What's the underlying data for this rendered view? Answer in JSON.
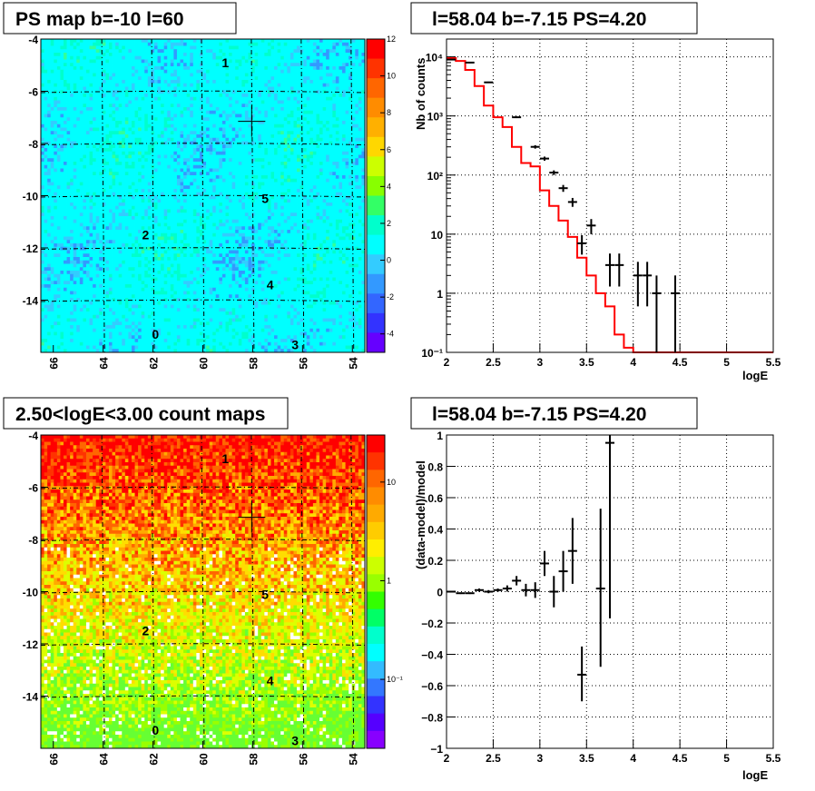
{
  "chart_data": [
    {
      "type": "heatmap",
      "title": "PS map b=-10 l=60",
      "xlim": [
        66.5,
        53.5
      ],
      "ylim": [
        -16,
        -4
      ],
      "x_ticks": [
        66,
        64,
        62,
        60,
        58,
        56,
        54
      ],
      "y_ticks": [
        -4,
        -6,
        -8,
        -10,
        -12,
        -14
      ],
      "color_scale": {
        "min": -5,
        "max": 12,
        "ticks": [
          12,
          10,
          8,
          6,
          4,
          2,
          0,
          -2,
          -4
        ]
      },
      "grid": "dashed",
      "marker": {
        "l": 58.04,
        "b": -7.15
      },
      "sources": [
        {
          "label": "1",
          "l": 59.1,
          "b": -4.9
        },
        {
          "label": "5",
          "l": 57.5,
          "b": -10.1
        },
        {
          "label": "2",
          "l": 62.3,
          "b": -11.5
        },
        {
          "label": "4",
          "l": 57.3,
          "b": -13.4
        },
        {
          "label": "0",
          "l": 61.9,
          "b": -15.3
        },
        {
          "label": "3",
          "l": 56.3,
          "b": -15.7
        }
      ]
    },
    {
      "type": "line",
      "title": "l=58.04 b=-7.15 PS=4.20",
      "xlabel": "logE",
      "ylabel": "Nb of counts",
      "xlim": [
        2,
        5.5
      ],
      "ylim": [
        0.1,
        20000
      ],
      "yscale": "log",
      "x_ticks": [
        "2",
        "2.5",
        "3",
        "3.5",
        "4",
        "4.5",
        "5",
        "5.5"
      ],
      "y_ticks": [
        "10⁻¹",
        "1",
        "10",
        "10²",
        "10³",
        "10⁴"
      ],
      "grid": true,
      "series": [
        {
          "kind": "model_histogram",
          "color": "#ff0000",
          "bin_edges": [
            2.0,
            2.1,
            2.2,
            2.3,
            2.4,
            2.5,
            2.6,
            2.7,
            2.8,
            2.9,
            3.0,
            3.1,
            3.2,
            3.3,
            3.4,
            3.5,
            3.6,
            3.7,
            3.8,
            3.9,
            4.0,
            4.1,
            4.2,
            4.3,
            4.4,
            4.5,
            4.6,
            4.7,
            4.8,
            4.9,
            5.0,
            5.1,
            5.2,
            5.3,
            5.4,
            5.5
          ],
          "values": [
            9500,
            8500,
            6000,
            3200,
            1500,
            950,
            650,
            300,
            160,
            140,
            55,
            30,
            17,
            9,
            4,
            2,
            1,
            0.6,
            0.2,
            0.12,
            0.1,
            0.1,
            0.1,
            0.1,
            0.1,
            0.1,
            0.1,
            0.1,
            0.1,
            0.1,
            0.1,
            0.1,
            0.1,
            0.1,
            0.1
          ]
        },
        {
          "kind": "data_points",
          "color": "#000000",
          "points": [
            {
              "x": 2.05,
              "y": 9000,
              "lo": 8800,
              "hi": 9200
            },
            {
              "x": 2.25,
              "y": 8000,
              "lo": 7800,
              "hi": 8200
            },
            {
              "x": 2.45,
              "y": 3700,
              "lo": 3600,
              "hi": 3800
            },
            {
              "x": 2.75,
              "y": 950,
              "lo": 920,
              "hi": 980
            },
            {
              "x": 2.95,
              "y": 300,
              "lo": 280,
              "hi": 320
            },
            {
              "x": 3.05,
              "y": 190,
              "lo": 175,
              "hi": 205
            },
            {
              "x": 3.15,
              "y": 110,
              "lo": 100,
              "hi": 120
            },
            {
              "x": 3.25,
              "y": 60,
              "lo": 52,
              "hi": 68
            },
            {
              "x": 3.35,
              "y": 35,
              "lo": 29,
              "hi": 41
            },
            {
              "x": 3.45,
              "y": 7,
              "lo": 4.5,
              "hi": 9.6
            },
            {
              "x": 3.55,
              "y": 14,
              "lo": 10,
              "hi": 18
            },
            {
              "x": 3.75,
              "y": 3,
              "lo": 1.3,
              "hi": 4.7
            },
            {
              "x": 3.85,
              "y": 3,
              "lo": 1.3,
              "hi": 4.7
            },
            {
              "x": 4.05,
              "y": 2,
              "lo": 0.6,
              "hi": 3.4
            },
            {
              "x": 4.15,
              "y": 2,
              "lo": 0.6,
              "hi": 3.4
            },
            {
              "x": 4.25,
              "y": 1,
              "lo": 0.1,
              "hi": 2.0
            },
            {
              "x": 4.45,
              "y": 1,
              "lo": 0.1,
              "hi": 2.0
            }
          ]
        }
      ]
    },
    {
      "type": "heatmap",
      "title": "2.50<logE<3.00 count maps",
      "xlim": [
        66.5,
        53.5
      ],
      "ylim": [
        -16,
        -4
      ],
      "x_ticks": [
        66,
        64,
        62,
        60,
        58,
        56,
        54
      ],
      "y_ticks": [
        -4,
        -6,
        -8,
        -10,
        -12,
        -14
      ],
      "color_scale": {
        "scale": "log",
        "min": 0.02,
        "max": 30,
        "ticks": [
          "10",
          "1",
          "10⁻¹"
        ]
      },
      "grid": "dashed",
      "marker": {
        "l": 58.04,
        "b": -7.15
      },
      "sources": [
        {
          "label": "1",
          "l": 59.1,
          "b": -4.9
        },
        {
          "label": "5",
          "l": 57.5,
          "b": -10.1
        },
        {
          "label": "2",
          "l": 62.3,
          "b": -11.5
        },
        {
          "label": "4",
          "l": 57.3,
          "b": -13.4
        },
        {
          "label": "0",
          "l": 61.9,
          "b": -15.3
        },
        {
          "label": "3",
          "l": 56.3,
          "b": -15.7
        }
      ]
    },
    {
      "type": "scatter",
      "title": "l=58.04 b=-7.15 PS=4.20",
      "xlabel": "logE",
      "ylabel": "(data-model)/model",
      "xlim": [
        2,
        5.5
      ],
      "ylim": [
        -1,
        1
      ],
      "x_ticks": [
        "2",
        "2.5",
        "3",
        "3.5",
        "4",
        "4.5",
        "5",
        "5.5"
      ],
      "y_ticks": [
        "1",
        "0.8",
        "0.6",
        "0.4",
        "0.2",
        "0",
        "−0.2",
        "−0.4",
        "−0.6",
        "−0.8",
        "−1"
      ],
      "grid": true,
      "points": [
        {
          "x": 2.05,
          "y": 0.0,
          "lo": -0.005,
          "hi": 0.005
        },
        {
          "x": 2.15,
          "y": -0.01,
          "lo": -0.015,
          "hi": -0.005
        },
        {
          "x": 2.25,
          "y": -0.01,
          "lo": -0.015,
          "hi": -0.005
        },
        {
          "x": 2.35,
          "y": 0.01,
          "lo": 0.0,
          "hi": 0.02
        },
        {
          "x": 2.45,
          "y": 0.0,
          "lo": -0.01,
          "hi": 0.01
        },
        {
          "x": 2.55,
          "y": 0.01,
          "lo": 0.0,
          "hi": 0.02
        },
        {
          "x": 2.65,
          "y": 0.02,
          "lo": 0.0,
          "hi": 0.04
        },
        {
          "x": 2.75,
          "y": 0.07,
          "lo": 0.04,
          "hi": 0.1
        },
        {
          "x": 2.85,
          "y": 0.01,
          "lo": -0.03,
          "hi": 0.05
        },
        {
          "x": 2.95,
          "y": 0.01,
          "lo": -0.04,
          "hi": 0.06
        },
        {
          "x": 3.05,
          "y": 0.18,
          "lo": 0.1,
          "hi": 0.26
        },
        {
          "x": 3.15,
          "y": 0.0,
          "lo": -0.1,
          "hi": 0.1
        },
        {
          "x": 3.25,
          "y": 0.13,
          "lo": 0.0,
          "hi": 0.26
        },
        {
          "x": 3.35,
          "y": 0.26,
          "lo": 0.05,
          "hi": 0.47
        },
        {
          "x": 3.45,
          "y": -0.53,
          "lo": -0.7,
          "hi": -0.35
        },
        {
          "x": 3.65,
          "y": 0.02,
          "lo": -0.48,
          "hi": 0.53
        },
        {
          "x": 3.75,
          "y": 0.95,
          "lo": -0.17,
          "hi": 1.0
        }
      ]
    }
  ]
}
